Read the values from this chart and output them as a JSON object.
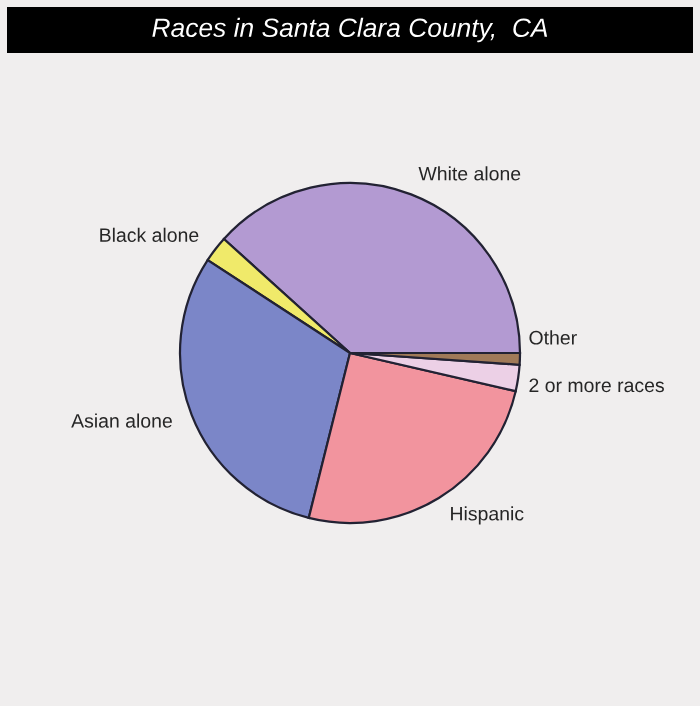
{
  "chart_data": {
    "type": "pie",
    "title": "Races in Santa Clara County,  CA",
    "categories": [
      "White alone",
      "Black alone",
      "Asian alone",
      "Hispanic",
      "2 or more races",
      "Other"
    ],
    "values": [
      38.3,
      2.5,
      30.3,
      25.3,
      2.5,
      1.1
    ],
    "colors": [
      "#b39ad2",
      "#f0ea6a",
      "#7b86c8",
      "#f2949e",
      "#ecd0e6",
      "#a07a58"
    ],
    "legend": false
  }
}
